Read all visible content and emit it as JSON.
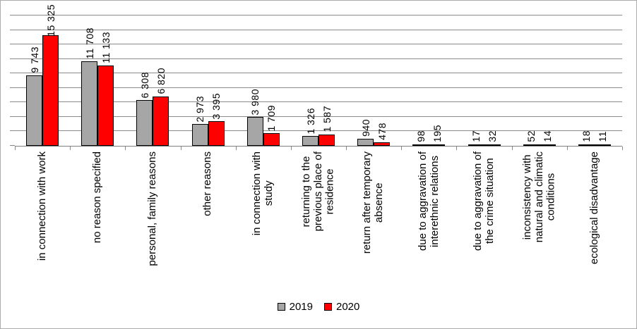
{
  "chart_data": {
    "type": "bar",
    "title": "",
    "xlabel": "",
    "ylabel": "",
    "categories": [
      "in connection with work",
      "no reason specified",
      "personal, family reasons",
      "other reasons",
      "in connection with\nstudy",
      "returning to the\nprevious place of\nresidence",
      "return after temporary\nabsence",
      "due to aggravation of\ninterethnic relations",
      "due to aggravation of\nthe crime situation",
      "inconsistency with\nnatural and climatic\nconditions",
      "ecological disadvantage"
    ],
    "series": [
      {
        "name": "2019",
        "color": "#a6a6a6",
        "values": [
          9743,
          11708,
          6308,
          2973,
          3980,
          1326,
          940,
          98,
          17,
          52,
          18
        ],
        "labels": [
          "9 743",
          "11 708",
          "6 308",
          "2 973",
          "3 980",
          "1 326",
          "940",
          "98",
          "17",
          "52",
          "18"
        ]
      },
      {
        "name": "2020",
        "color": "#ff0000",
        "values": [
          15325,
          11133,
          6820,
          3395,
          1709,
          1587,
          478,
          195,
          32,
          14,
          11
        ],
        "labels": [
          "15 325",
          "11 133",
          "6 820",
          "3 395",
          "1 709",
          "1 587",
          "478",
          "195",
          "32",
          "14",
          "11"
        ]
      }
    ],
    "ylim": [
      0,
      18000
    ],
    "gridline_step": 2000,
    "grid": true,
    "y_tick_labels_visible": false,
    "legend_position": "bottom",
    "bar_border_color": "#000000",
    "gridline_color": "#8a8a8a",
    "axis_color": "#7f7f7f"
  }
}
